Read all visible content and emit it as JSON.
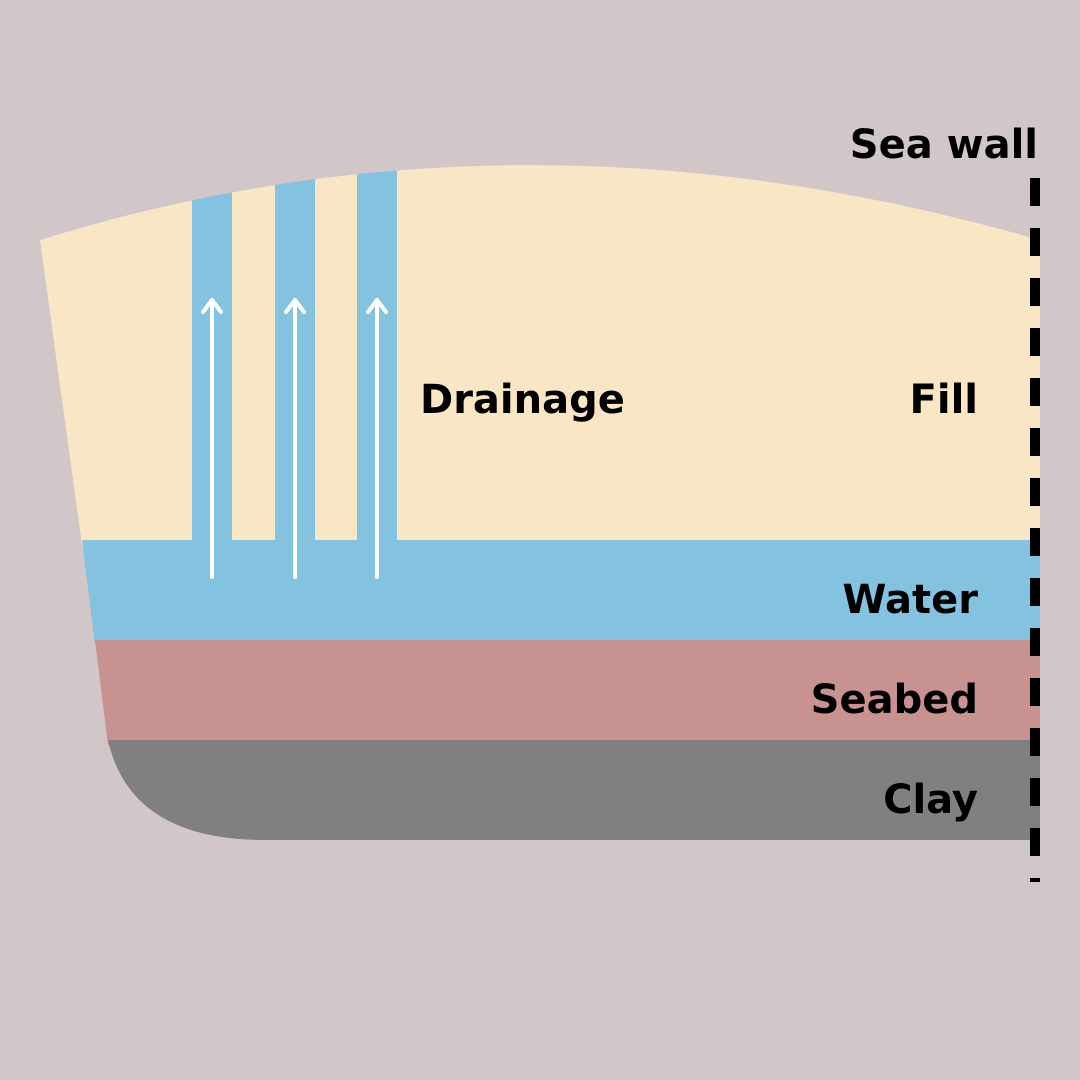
{
  "labels": {
    "sea_wall": "Sea wall",
    "drainage": "Drainage",
    "fill": "Fill",
    "water": "Water",
    "seabed": "Seabed",
    "clay": "Clay"
  },
  "colors": {
    "background": "#d1c7c8",
    "fill": "#f8e6c5",
    "water": "#84c3e0",
    "seabed": "#c79290",
    "clay": "#808080",
    "sea_wall": "#000000",
    "arrow": "#ffffff"
  },
  "drains": {
    "count": 3
  }
}
